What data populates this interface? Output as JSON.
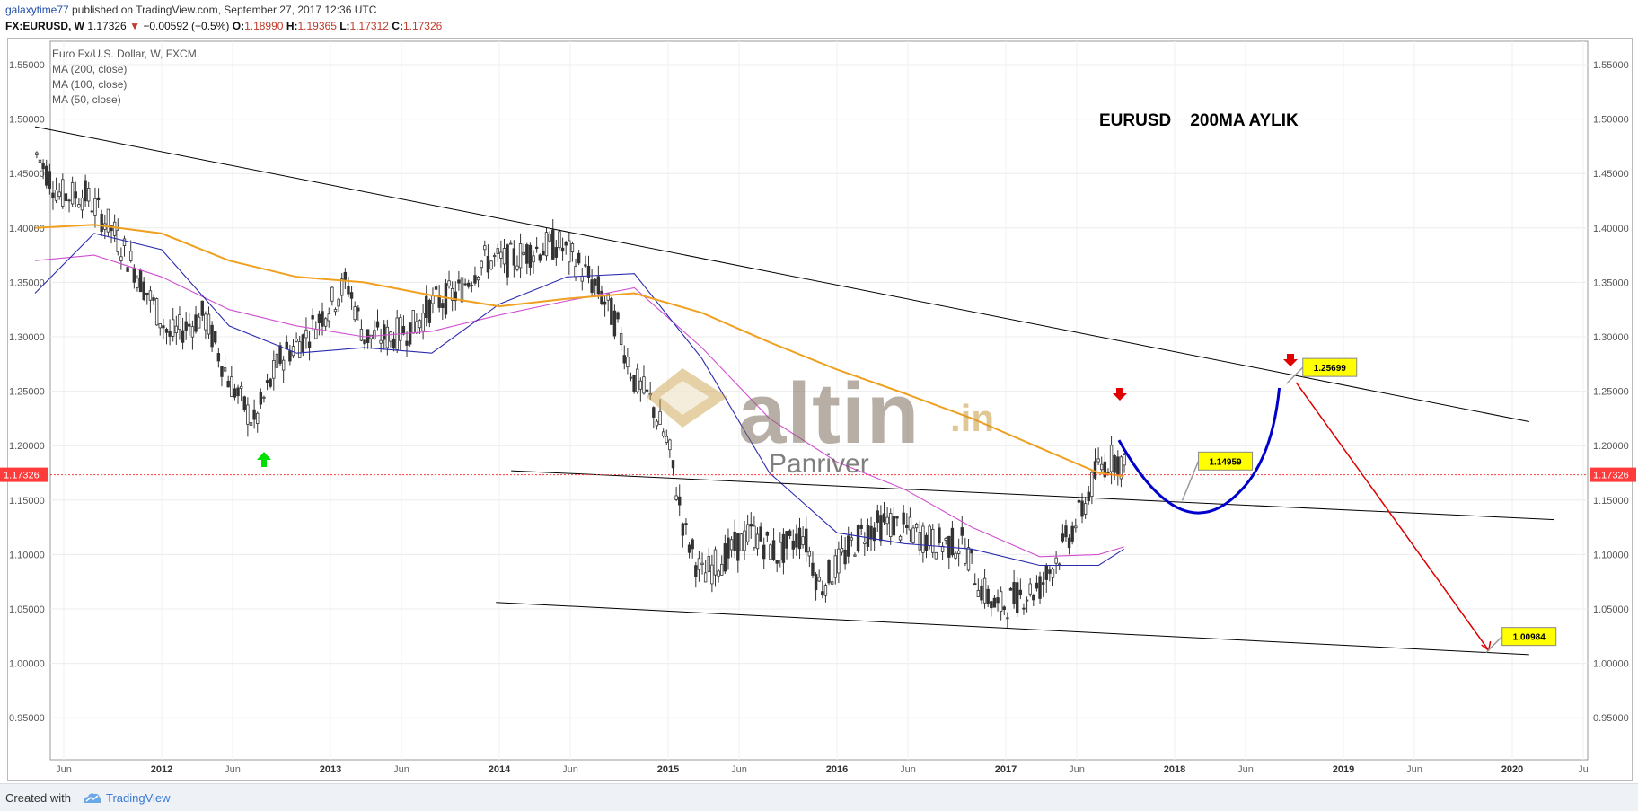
{
  "header": {
    "user": "galaxytime77",
    "published": " published on TradingView.com, September 27, 2017 12:36 UTC",
    "symbol": "FX:EURUSD, W",
    "last": "1.17326",
    "down_glyph": "▼",
    "change": "−0.00592 (−0.5%)",
    "o_label": "O:",
    "o": "1.18990",
    "h_label": "H:",
    "h": "1.19365",
    "l_label": "L:",
    "l": "1.17312",
    "c_label": "C:",
    "c": "1.17326"
  },
  "legend": {
    "title": "Euro Fx/U.S. Dollar, W, FXCM",
    "ma200": "MA (200, close)",
    "ma100": "MA (100, close)",
    "ma50": "MA (50, close)"
  },
  "annotation_title": "EURUSD    200MA AYLIK",
  "watermark": {
    "brand": "altin",
    "tld": ".in",
    "sub": "Panriver"
  },
  "footer": {
    "created": "Created with",
    "brand": "TradingView"
  },
  "colors": {
    "up": "#4a4a4a",
    "down": "#4a4a4a",
    "ma200": "#f0a020",
    "ma100": "#2b2bb0",
    "ma50": "#d050d0",
    "trend": "#000000",
    "projection": "#0000cc",
    "target": "#dd0000",
    "callout": "#ffff00",
    "price_tag": "#ff3b3b",
    "green_arrow": "#00dd00"
  },
  "chart_data": {
    "type": "candlestick",
    "title": "",
    "y_ticks": [
      "1.55000",
      "1.50000",
      "1.45000",
      "1.40000",
      "1.35000",
      "1.30000",
      "1.25000",
      "1.20000",
      "1.15000",
      "1.10000",
      "1.05000",
      "1.00000",
      "0.95000"
    ],
    "ylim": [
      0.91,
      1.59
    ],
    "x_ticks": [
      "Jun",
      "2012",
      "Jun",
      "2013",
      "Jun",
      "2014",
      "Jun",
      "2015",
      "Jun",
      "2016",
      "Jun",
      "2017",
      "Jun",
      "2018",
      "Jun",
      "2019",
      "Jun",
      "2020",
      "Ju"
    ],
    "current_price": "1.17326",
    "callouts": [
      {
        "label": "1.14959",
        "price": 1.14959
      },
      {
        "label": "1.25699",
        "price": 1.25699
      },
      {
        "label": "1.00984",
        "price": 1.00984
      }
    ],
    "ma200_path": [
      [
        2011.25,
        1.4
      ],
      [
        2011.6,
        1.403
      ],
      [
        2012.0,
        1.395
      ],
      [
        2012.4,
        1.37
      ],
      [
        2012.8,
        1.355
      ],
      [
        2013.2,
        1.35
      ],
      [
        2013.6,
        1.338
      ],
      [
        2014.0,
        1.328
      ],
      [
        2014.4,
        1.335
      ],
      [
        2014.8,
        1.34
      ],
      [
        2015.2,
        1.322
      ],
      [
        2015.6,
        1.295
      ],
      [
        2016.0,
        1.27
      ],
      [
        2016.4,
        1.248
      ],
      [
        2016.8,
        1.225
      ],
      [
        2017.2,
        1.198
      ],
      [
        2017.55,
        1.175
      ],
      [
        2017.7,
        1.172
      ]
    ],
    "ma100_path": [
      [
        2011.25,
        1.34
      ],
      [
        2011.6,
        1.395
      ],
      [
        2012.0,
        1.38
      ],
      [
        2012.4,
        1.31
      ],
      [
        2012.8,
        1.285
      ],
      [
        2013.2,
        1.29
      ],
      [
        2013.6,
        1.285
      ],
      [
        2014.0,
        1.33
      ],
      [
        2014.4,
        1.355
      ],
      [
        2014.8,
        1.358
      ],
      [
        2015.2,
        1.28
      ],
      [
        2015.6,
        1.175
      ],
      [
        2016.0,
        1.12
      ],
      [
        2016.4,
        1.11
      ],
      [
        2016.8,
        1.105
      ],
      [
        2017.2,
        1.09
      ],
      [
        2017.55,
        1.09
      ],
      [
        2017.7,
        1.105
      ]
    ],
    "ma50_path": [
      [
        2011.25,
        1.37
      ],
      [
        2011.6,
        1.375
      ],
      [
        2012.0,
        1.355
      ],
      [
        2012.4,
        1.325
      ],
      [
        2012.8,
        1.31
      ],
      [
        2013.2,
        1.3
      ],
      [
        2013.6,
        1.305
      ],
      [
        2014.0,
        1.32
      ],
      [
        2014.4,
        1.333
      ],
      [
        2014.8,
        1.345
      ],
      [
        2015.2,
        1.29
      ],
      [
        2015.6,
        1.225
      ],
      [
        2016.0,
        1.185
      ],
      [
        2016.4,
        1.16
      ],
      [
        2016.8,
        1.125
      ],
      [
        2017.2,
        1.098
      ],
      [
        2017.55,
        1.1
      ],
      [
        2017.7,
        1.107
      ]
    ]
  }
}
